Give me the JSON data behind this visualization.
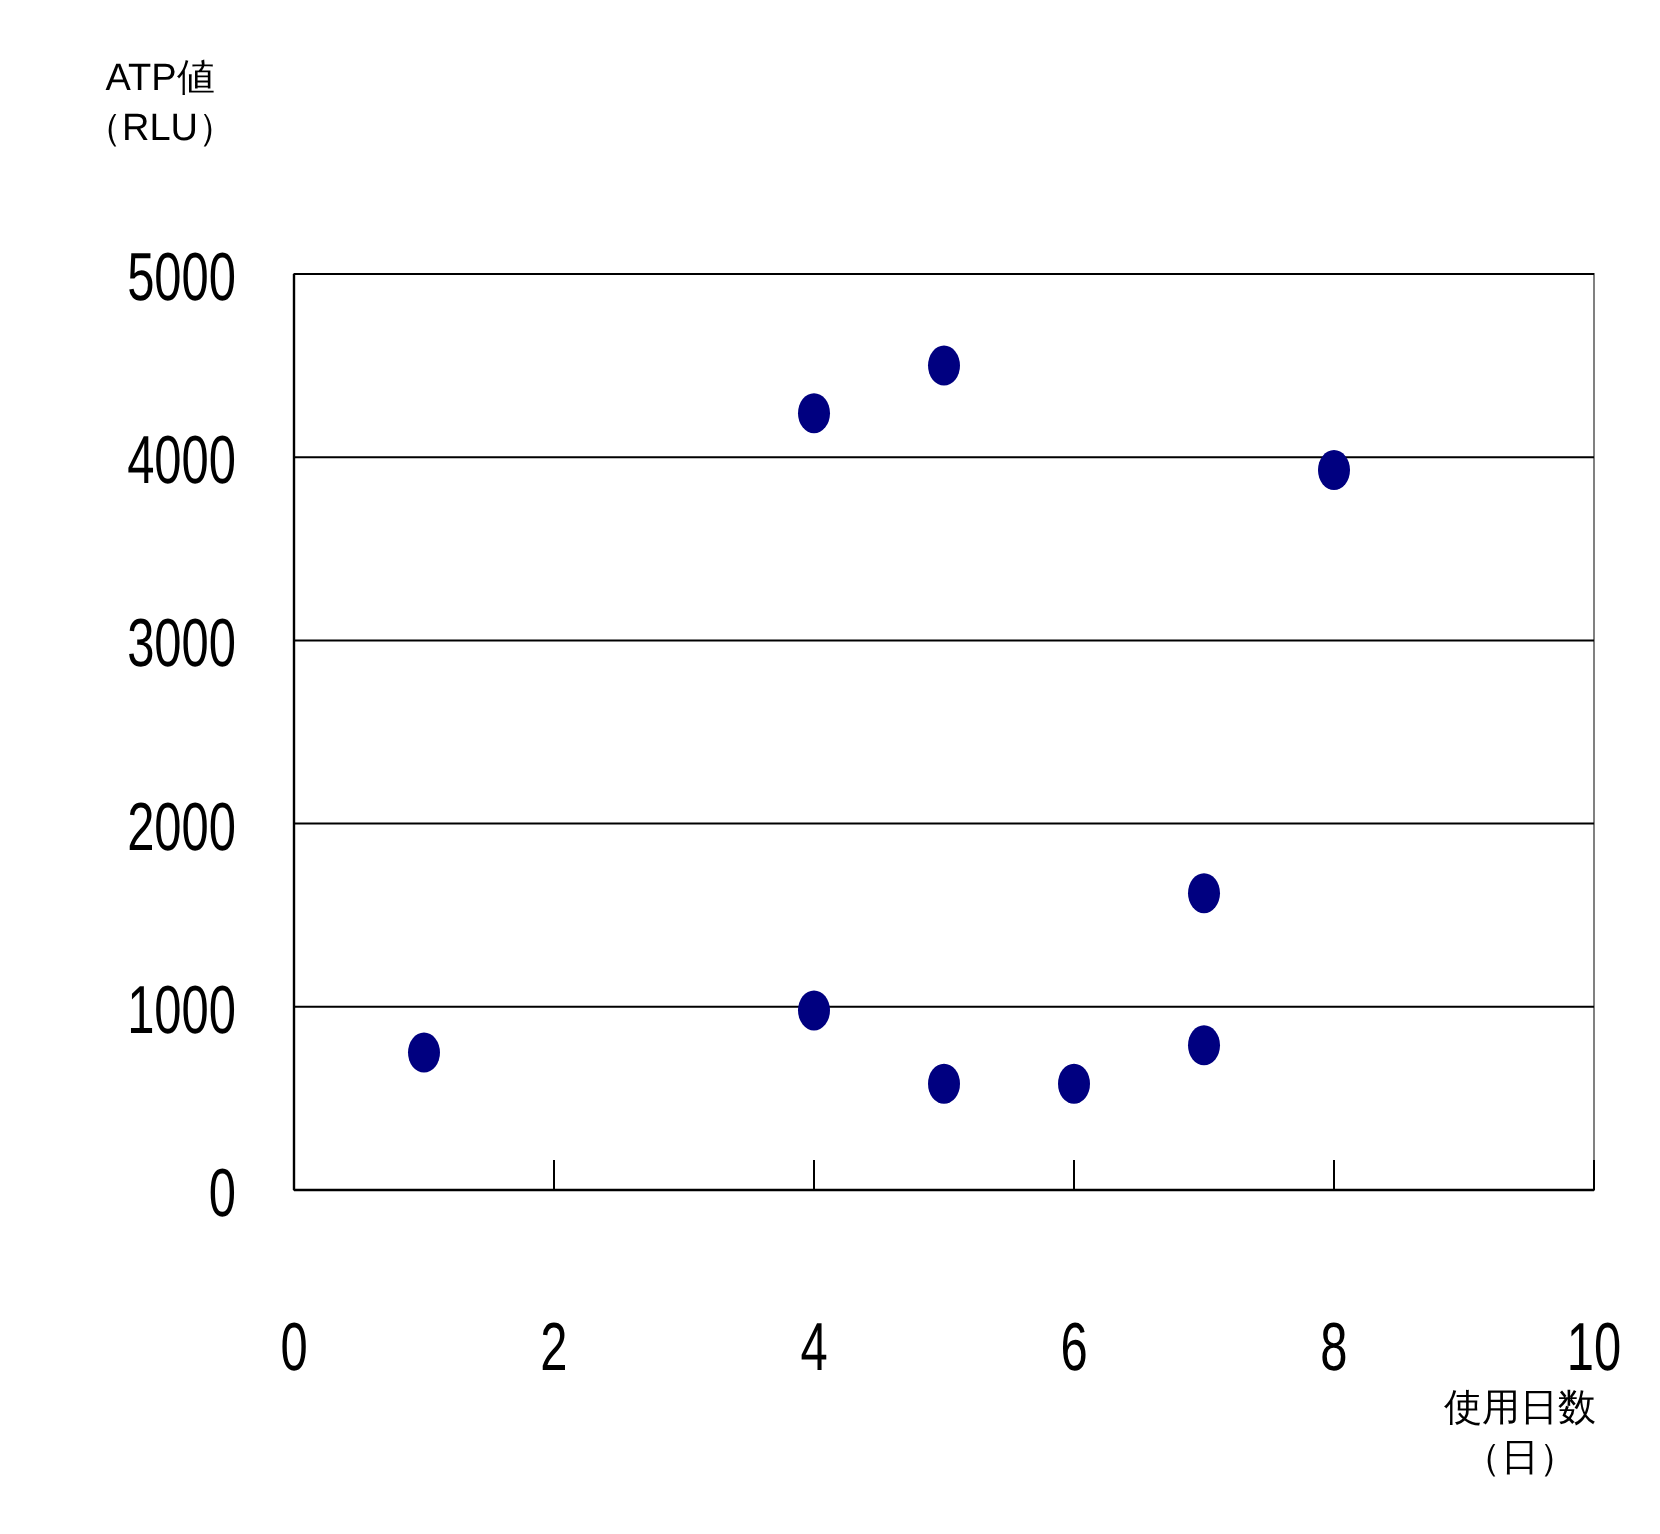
{
  "chart_data": {
    "type": "scatter",
    "xlabel": "使用日数（日）",
    "ylabel": "ATP値（RLU）",
    "x": [
      1,
      4,
      4,
      5,
      5,
      6,
      7,
      7,
      8
    ],
    "series": [
      {
        "color": "#000080",
        "values": [
          750,
          4240,
          980,
          4500,
          580,
          580,
          1620,
          790,
          3930
        ]
      }
    ],
    "xlim": [
      0,
      10
    ],
    "ylim": [
      0,
      5000
    ],
    "xticks": [
      0,
      2,
      4,
      6,
      8,
      10
    ],
    "yticks": [
      0,
      1000,
      2000,
      3000,
      4000,
      5000
    ],
    "grid": "y",
    "marker": "circle"
  }
}
